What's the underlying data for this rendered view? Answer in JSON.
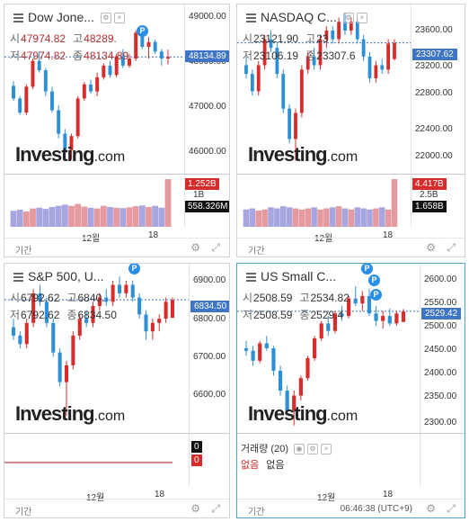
{
  "common": {
    "period_label": "기간",
    "month_label": "12월",
    "day_label": "18",
    "logo_text": "Investing",
    "logo_suffix": ".com"
  },
  "panels": [
    {
      "id": "dow",
      "title": "Dow Jone...",
      "ohlc": {
        "open_label": "시",
        "open": "47974.82",
        "high_label": "고",
        "high": "48289.",
        "low_label": "저",
        "low": "47974.82",
        "close_label": "종",
        "close": "48134.89"
      },
      "current_price": "48134.89",
      "y_ticks": [
        "49000.00",
        "48000.00",
        "47000.00",
        "46000.00"
      ],
      "y_range": [
        45650,
        49250
      ],
      "vol_labels": {
        "v1": "1.252B",
        "v2": "1B",
        "v3": "558.326M"
      },
      "candles": [
        [
          47520,
          47620,
          47200,
          47250
        ],
        [
          47250,
          47300,
          46900,
          46950
        ],
        [
          46950,
          47550,
          46900,
          47500
        ],
        [
          47500,
          48100,
          47450,
          48050
        ],
        [
          48050,
          48250,
          47800,
          47850
        ],
        [
          47850,
          47900,
          47300,
          47400
        ],
        [
          47400,
          47500,
          46950,
          47000
        ],
        [
          47000,
          47100,
          46400,
          46500
        ],
        [
          46500,
          46600,
          46050,
          46150
        ],
        [
          46150,
          46500,
          45950,
          46450
        ],
        [
          46450,
          47300,
          46400,
          47250
        ],
        [
          47250,
          47600,
          47200,
          47550
        ],
        [
          47550,
          47650,
          47350,
          47400
        ],
        [
          47400,
          47800,
          47300,
          47700
        ],
        [
          47700,
          48000,
          47650,
          47950
        ],
        [
          47950,
          48050,
          47700,
          47750
        ],
        [
          47750,
          48200,
          47700,
          48150
        ],
        [
          48150,
          48300,
          47900,
          47950
        ],
        [
          47950,
          48200,
          47900,
          48100
        ],
        [
          48100,
          48700,
          48050,
          48650
        ],
        [
          48650,
          48750,
          48300,
          48350
        ],
        [
          48350,
          48550,
          48100,
          48450
        ],
        [
          48450,
          48500,
          48200,
          48250
        ],
        [
          48250,
          48300,
          47950,
          48100
        ],
        [
          48100,
          48289,
          47974,
          48134
        ]
      ],
      "volumes": [
        0.42,
        0.45,
        0.4,
        0.48,
        0.5,
        0.47,
        0.52,
        0.55,
        0.58,
        0.55,
        0.6,
        0.53,
        0.5,
        0.48,
        0.55,
        0.52,
        0.5,
        0.49,
        0.51,
        0.54,
        0.56,
        0.52,
        0.55,
        0.5,
        1.25
      ]
    },
    {
      "id": "nasdaq",
      "title": "NASDAQ C...",
      "ohlc": {
        "open_label": "시",
        "open": "23121.90",
        "high_label": "고",
        "high": "23",
        "low_label": "저",
        "low": "23106.19",
        "close_label": "종",
        "close": "23307.6"
      },
      "current_price": "23307.62",
      "y_ticks": [
        "23600.00",
        "23200.00",
        "22800.00",
        "22400.00",
        "22000.00"
      ],
      "y_range": [
        21800,
        23750
      ],
      "vol_labels": {
        "v1": "4.417B",
        "v2": "2.5B",
        "v3": "1.658B"
      },
      "candles": [
        [
          23050,
          23150,
          22900,
          22950
        ],
        [
          22950,
          23000,
          22700,
          22750
        ],
        [
          22750,
          23100,
          22700,
          23050
        ],
        [
          23050,
          23400,
          23000,
          23350
        ],
        [
          23350,
          23450,
          23200,
          23250
        ],
        [
          23250,
          23300,
          22900,
          22950
        ],
        [
          22950,
          23000,
          22500,
          22550
        ],
        [
          22550,
          22600,
          22150,
          22200
        ],
        [
          22200,
          22550,
          21950,
          22500
        ],
        [
          22500,
          23050,
          22450,
          23000
        ],
        [
          23000,
          23200,
          22950,
          23150
        ],
        [
          23150,
          23250,
          23000,
          23050
        ],
        [
          23050,
          23400,
          23000,
          23350
        ],
        [
          23350,
          23500,
          23250,
          23450
        ],
        [
          23450,
          23500,
          23300,
          23350
        ],
        [
          23350,
          23600,
          23300,
          23550
        ],
        [
          23550,
          23650,
          23400,
          23450
        ],
        [
          23450,
          23600,
          23400,
          23550
        ],
        [
          23550,
          23600,
          23300,
          23350
        ],
        [
          23350,
          23400,
          23100,
          23150
        ],
        [
          23150,
          23200,
          22850,
          22900
        ],
        [
          22900,
          23100,
          22850,
          23050
        ],
        [
          23050,
          23121,
          22950,
          23000
        ],
        [
          23000,
          23350,
          22950,
          23300
        ],
        [
          23121,
          23350,
          23106,
          23307
        ]
      ],
      "volumes": [
        1.6,
        1.7,
        1.5,
        1.6,
        1.8,
        1.7,
        1.9,
        1.8,
        1.7,
        1.6,
        1.7,
        1.8,
        1.6,
        1.7,
        1.8,
        1.9,
        1.7,
        1.6,
        1.8,
        1.7,
        1.6,
        1.7,
        1.8,
        1.6,
        4.4
      ]
    },
    {
      "id": "sp500",
      "title": "S&P 500, U...",
      "ohlc": {
        "open_label": "시",
        "open": "6792.62",
        "high_label": "고",
        "high": "6840.",
        "low_label": "저",
        "low": "6792.62",
        "close_label": "종",
        "close": "6834.50"
      },
      "current_price": "6834.50",
      "y_ticks": [
        "6900.00",
        "6800.00",
        "6700.00",
        "6600.00"
      ],
      "y_range": [
        6520,
        6920
      ],
      "vol_labels": {
        "v1": "0",
        "v2": "0"
      },
      "candles": [
        [
          6770,
          6790,
          6740,
          6750
        ],
        [
          6750,
          6760,
          6720,
          6730
        ],
        [
          6730,
          6790,
          6720,
          6780
        ],
        [
          6780,
          6860,
          6770,
          6850
        ],
        [
          6850,
          6870,
          6820,
          6830
        ],
        [
          6830,
          6840,
          6770,
          6780
        ],
        [
          6780,
          6790,
          6700,
          6710
        ],
        [
          6710,
          6720,
          6630,
          6640
        ],
        [
          6640,
          6690,
          6560,
          6680
        ],
        [
          6680,
          6760,
          6670,
          6750
        ],
        [
          6750,
          6800,
          6740,
          6790
        ],
        [
          6790,
          6810,
          6770,
          6780
        ],
        [
          6780,
          6830,
          6770,
          6820
        ],
        [
          6820,
          6850,
          6810,
          6840
        ],
        [
          6840,
          6860,
          6820,
          6830
        ],
        [
          6830,
          6880,
          6820,
          6870
        ],
        [
          6870,
          6890,
          6840,
          6850
        ],
        [
          6850,
          6880,
          6840,
          6870
        ],
        [
          6870,
          6880,
          6830,
          6840
        ],
        [
          6840,
          6850,
          6790,
          6800
        ],
        [
          6800,
          6810,
          6740,
          6760
        ],
        [
          6760,
          6790,
          6740,
          6780
        ],
        [
          6780,
          6800,
          6760,
          6790
        ],
        [
          6790,
          6840,
          6780,
          6830
        ],
        [
          6792,
          6840,
          6792,
          6834
        ]
      ]
    },
    {
      "id": "russell",
      "title": "US Small C...",
      "ohlc": {
        "open_label": "시",
        "open": "2508.59",
        "high_label": "고",
        "high": "2534.82",
        "low_label": "저",
        "low": "2508.59",
        "close_label": "종",
        "close": "2529.4"
      },
      "current_price": "2529.42",
      "y_ticks": [
        "2600.00",
        "2550.00",
        "2500.00",
        "2450.00",
        "2400.00",
        "2350.00",
        "2300.00"
      ],
      "y_range": [
        2285,
        2625
      ],
      "volume_panel": {
        "title": "거래량 (20)",
        "none1": "없음",
        "none2": "없음"
      },
      "time_text": "06:46:38 (UTC+9)",
      "candles": [
        [
          2455,
          2470,
          2440,
          2450
        ],
        [
          2450,
          2460,
          2420,
          2430
        ],
        [
          2430,
          2470,
          2425,
          2465
        ],
        [
          2465,
          2480,
          2450,
          2455
        ],
        [
          2455,
          2460,
          2400,
          2410
        ],
        [
          2410,
          2420,
          2360,
          2370
        ],
        [
          2370,
          2380,
          2320,
          2330
        ],
        [
          2330,
          2370,
          2300,
          2360
        ],
        [
          2360,
          2400,
          2350,
          2395
        ],
        [
          2395,
          2440,
          2390,
          2435
        ],
        [
          2435,
          2480,
          2430,
          2475
        ],
        [
          2475,
          2510,
          2470,
          2505
        ],
        [
          2505,
          2520,
          2480,
          2490
        ],
        [
          2490,
          2530,
          2485,
          2525
        ],
        [
          2525,
          2540,
          2510,
          2520
        ],
        [
          2520,
          2560,
          2515,
          2555
        ],
        [
          2555,
          2580,
          2540,
          2545
        ],
        [
          2545,
          2570,
          2530,
          2560
        ],
        [
          2560,
          2575,
          2520,
          2525
        ],
        [
          2525,
          2540,
          2500,
          2510
        ],
        [
          2510,
          2530,
          2495,
          2520
        ],
        [
          2520,
          2535,
          2500,
          2505
        ],
        [
          2505,
          2530,
          2500,
          2525
        ],
        [
          2508,
          2534,
          2508,
          2529
        ]
      ]
    }
  ],
  "colors": {
    "up": "#d62c2c",
    "down": "#2d8fd5",
    "vol_red": "#e59aa0",
    "vol_blue": "#a8a6e0",
    "price_label": "#3f75c4",
    "vol_label_red": "#d62c2c",
    "vol_label_dark": "#111111",
    "panel_active_border": "#4fa3c7",
    "badge": "#2b8ee6"
  }
}
